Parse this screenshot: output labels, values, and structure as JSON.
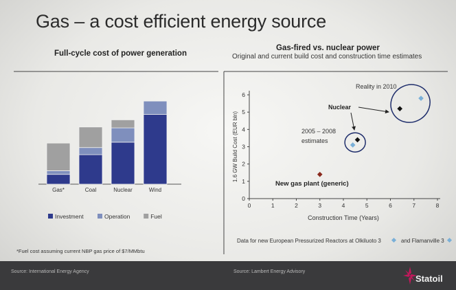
{
  "slide": {
    "title": "Gas – a cost efficient energy source",
    "left_footnote": "*Fuel cost assuming current NBP gas price of $7/MMbtu",
    "left_source": "Source: International Energy Agency",
    "right_source": "Source: Lambert Energy Advisory",
    "right_footnote": "Data for new European Pressurized Reactors at  Olkiluoto 3",
    "right_footnote_2": "and Flamanville 3",
    "logo": "Statoil",
    "colors": {
      "investment": "#2e3a8c",
      "operation": "#7f8fbd",
      "fuel": "#a0a0a0",
      "new_gas": "#8a2a1e",
      "olkiluoto": "#7ab0d8",
      "flamanville": "#111111"
    }
  },
  "chart_data": [
    {
      "type": "bar",
      "stacked": true,
      "title": "Full-cycle cost of power generation",
      "categories": [
        "Gas*",
        "Coal",
        "Nuclear",
        "Wind"
      ],
      "series": [
        {
          "name": "Investment",
          "values": [
            1.1,
            3.3,
            4.7,
            7.8
          ]
        },
        {
          "name": "Operation",
          "values": [
            0.4,
            0.8,
            1.6,
            1.5
          ]
        },
        {
          "name": "Fuel",
          "values": [
            3.1,
            2.3,
            0.9,
            0
          ]
        }
      ],
      "ylim": [
        0,
        10
      ],
      "grid": false,
      "legend": "bottom"
    },
    {
      "type": "scatter",
      "title": "Gas-fired vs. nuclear power",
      "subtitle": "Original and current build cost and construction time estimates",
      "xlabel": "Construction Time (Years)",
      "ylabel": "1.6 GW Build Cost (EUR bln)",
      "xlim": [
        0,
        8
      ],
      "ylim": [
        0,
        6
      ],
      "xticks": [
        0,
        1,
        2,
        3,
        4,
        5,
        6,
        7,
        8
      ],
      "yticks": [
        0,
        1,
        2,
        3,
        4,
        5,
        6
      ],
      "grid": false,
      "series": [
        {
          "name": "Olkiluoto 3",
          "points": [
            [
              4.4,
              3.1
            ],
            [
              7.3,
              5.8
            ]
          ]
        },
        {
          "name": "Flamanville 3",
          "points": [
            [
              4.6,
              3.4
            ],
            [
              6.4,
              5.2
            ]
          ]
        },
        {
          "name": "New gas plant (generic)",
          "points": [
            [
              3.0,
              1.4
            ]
          ]
        }
      ],
      "annotations": [
        {
          "text": "Reality in 2010"
        },
        {
          "text": "Nuclear"
        },
        {
          "text": "2005 – 2008"
        },
        {
          "text": "estimates"
        },
        {
          "text": "New gas plant (generic)"
        }
      ]
    }
  ]
}
